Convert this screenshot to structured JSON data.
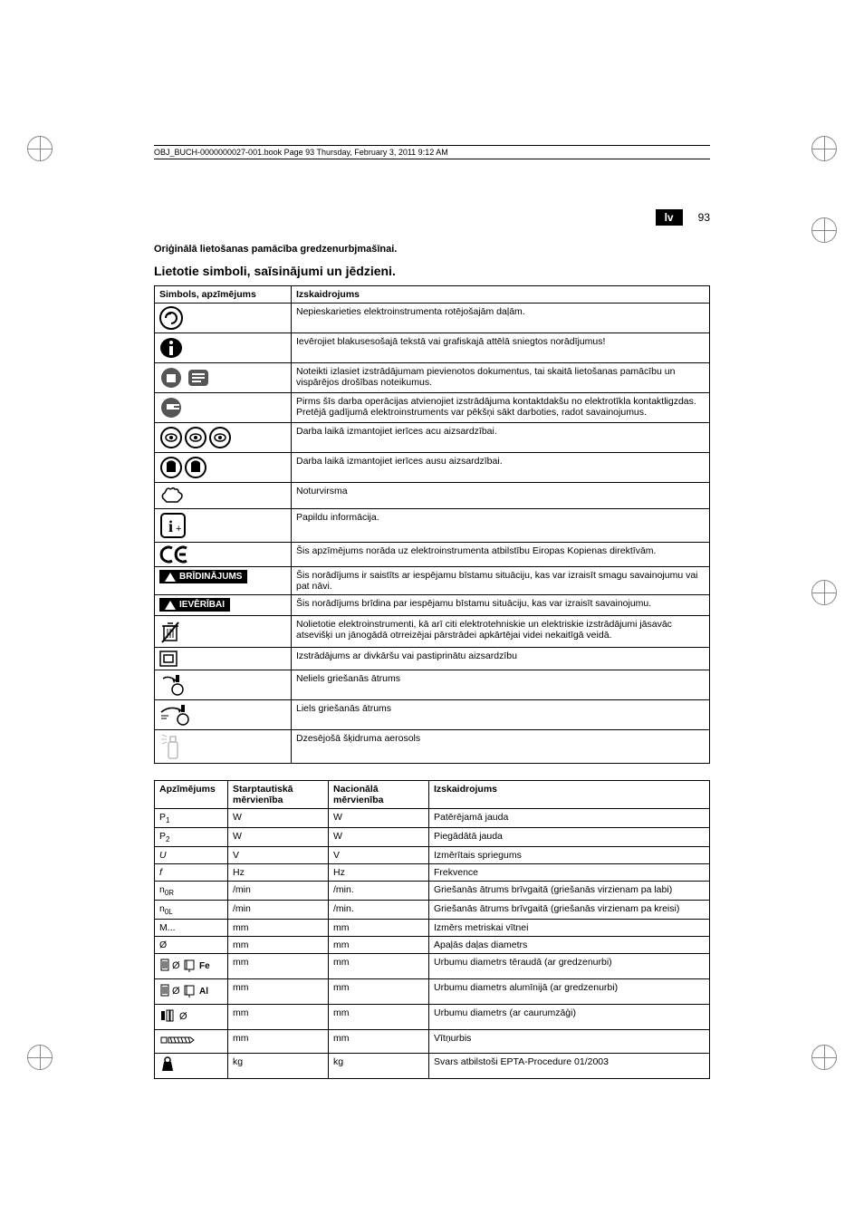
{
  "header_line": "OBJ_BUCH-0000000027-001.book  Page 93  Thursday, February 3, 2011  9:12 AM",
  "lang_code": "lv",
  "page_number": "93",
  "subtitle": "Oriģinālā lietošanas pamācība gredzenurbjmašīnai.",
  "section_title": "Lietotie simboli, saīsinājumi un jēdzieni.",
  "table1": {
    "head_sym": "Simbols, apzīmējums",
    "head_expl": "Izskaidrojums",
    "rows": [
      {
        "icon": "rot",
        "text": "Nepieskarieties elektroinstrumenta rotējošajām daļām."
      },
      {
        "icon": "info",
        "text": "Ievērojiet blakusesošajā tekstā vai grafiskajā attēlā sniegtos norādījumus!"
      },
      {
        "icon": "docs",
        "text": "Noteikti izlasiet izstrādājumam pievienotos dokumentus, tai skaitā lietošanas pamācību un vispārējos drošības noteikumus."
      },
      {
        "icon": "plug",
        "text": "Pirms šīs darba operācijas atvienojiet izstrādājuma kontaktdakšu no elektrotīkla kontaktligzdas. Pretējā gadījumā elektroinstruments var pēkšņi sākt darboties, radot savainojumus."
      },
      {
        "icon": "eyes",
        "text": "Darba laikā izmantojiet ierīces acu aizsardzībai."
      },
      {
        "icon": "ears",
        "text": "Darba laikā izmantojiet ierīces ausu aizsardzībai."
      },
      {
        "icon": "hand",
        "text": "Noturvirsma"
      },
      {
        "icon": "i",
        "text": "Papildu informācija."
      },
      {
        "icon": "ce",
        "text": "Šis apzīmējums norāda uz elektroinstrumenta atbilstību Eiropas Kopienas direktīvām."
      },
      {
        "icon": "warn1",
        "label": "BRĪDINĀJUMS",
        "text": "Šis norādījums ir saistīts ar iespējamu bīstamu situāciju, kas var izraisīt smagu savainojumu vai pat nāvi."
      },
      {
        "icon": "warn2",
        "label": "IEVĒRĪBAI",
        "text": "Šis norādījums brīdina par iespējamu bīstamu situāciju, kas var izraisīt savainojumu."
      },
      {
        "icon": "bin",
        "text": "Nolietotie elektroinstrumenti, kā arī citi elektrotehniskie un elektriskie izstrādājumi jāsavāc atsevišķi un jānogādā otrreizējai pārstrādei apkārtējai videi nekaitīgā veidā."
      },
      {
        "icon": "sq",
        "text": "Izstrādājums ar divkāršu vai pastiprinātu aizsardzību"
      },
      {
        "icon": "slow",
        "text": "Neliels griešanās ātrums"
      },
      {
        "icon": "fast",
        "text": "Liels griešanās ātrums"
      },
      {
        "icon": "spray",
        "text": "Dzesējošā šķidruma aerosols"
      }
    ]
  },
  "table2": {
    "head": [
      "Apzīmējums",
      "Starptautiskā mērvienība",
      "Nacionālā mērvienība",
      "Izskaidrojums"
    ],
    "rows": [
      {
        "sym": "P1",
        "sub": "1",
        "pre": "P",
        "intl": "W",
        "nat": "W",
        "expl": "Patērējamā jauda"
      },
      {
        "sym": "P2",
        "sub": "2",
        "pre": "P",
        "intl": "W",
        "nat": "W",
        "expl": "Piegādātā jauda"
      },
      {
        "sym": "U",
        "intl": "V",
        "nat": "V",
        "expl": "Izmērītais spriegums",
        "italic": true
      },
      {
        "sym": "f",
        "intl": "Hz",
        "nat": "Hz",
        "expl": "Frekvence",
        "italic": true
      },
      {
        "sym": "n0R",
        "pre": "n",
        "sub": "0R",
        "intl": "/min",
        "nat": "/min.",
        "expl": "Griešanās ātrums brīvgaitā (griešanās virzienam pa labi)"
      },
      {
        "sym": "n0L",
        "pre": "n",
        "sub": "0L",
        "intl": "/min",
        "nat": "/min.",
        "expl": "Griešanās ātrums brīvgaitā (griešanās virzienam pa kreisi)"
      },
      {
        "sym": "M...",
        "intl": "mm",
        "nat": "mm",
        "expl": "Izmērs metriskai vītnei"
      },
      {
        "sym": "Ø",
        "intl": "mm",
        "nat": "mm",
        "expl": "Apaļās daļas diametrs"
      },
      {
        "icon": "fe",
        "intl": "mm",
        "nat": "mm",
        "expl": "Urbumu diametrs tēraudā (ar gredzenurbi)"
      },
      {
        "icon": "al",
        "intl": "mm",
        "nat": "mm",
        "expl": "Urbumu diametrs alumīnijā (ar gredzenurbi)"
      },
      {
        "icon": "slot",
        "intl": "mm",
        "nat": "mm",
        "expl": "Urbumu diametrs (ar caurumzāģi)"
      },
      {
        "icon": "thread",
        "intl": "mm",
        "nat": "mm",
        "expl": "Vītņurbis"
      },
      {
        "icon": "wt",
        "intl": "kg",
        "nat": "kg",
        "expl": "Svars atbilstoši EPTA-Procedure 01/2003"
      }
    ]
  }
}
